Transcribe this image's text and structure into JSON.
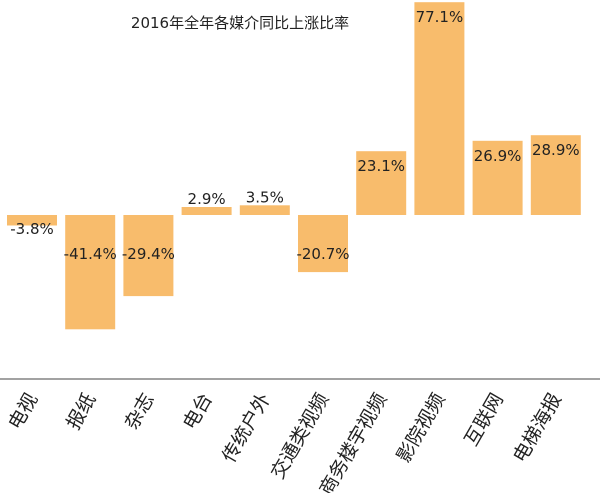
{
  "chart_data": {
    "type": "bar",
    "title": "2016年全年各媒介同比上涨比率",
    "categories": [
      "电视",
      "报纸",
      "杂志",
      "电台",
      "传统户外",
      "交通类视频",
      "商务楼宇视频",
      "影院视频",
      "互联网",
      "电梯海报"
    ],
    "values": [
      -3.8,
      -41.4,
      -29.4,
      2.9,
      3.5,
      -20.7,
      23.1,
      77.1,
      26.9,
      28.9
    ],
    "labels": [
      "-3.8%",
      "-41.4%",
      "-29.4%",
      "2.9%",
      "3.5%",
      "-20.7%",
      "23.1%",
      "77.1%",
      "26.9%",
      "28.9%"
    ],
    "xlabel": "",
    "ylabel": "",
    "bar_color": "#F8BC6C",
    "grid": false,
    "legend": "none"
  }
}
